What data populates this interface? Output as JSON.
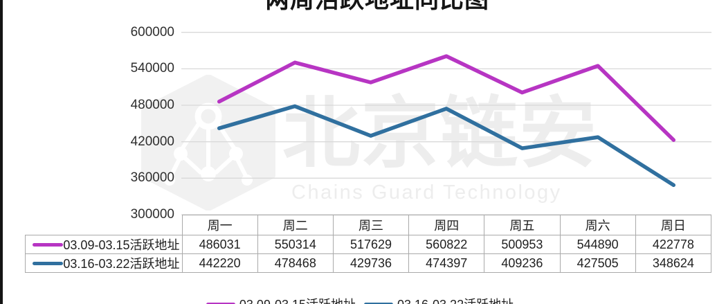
{
  "title": "两周活跃地址同比图",
  "watermark": {
    "logo_icon": "hexagon-molecule-icon",
    "brand": "北京链安",
    "brand_en": "Chains Guard Technology"
  },
  "colors": {
    "series1": "#b735c3",
    "series2": "#30709f",
    "gridline": "#d9d9d9",
    "table_border": "#a9a9a9",
    "watermark_gray": "#ededed"
  },
  "chart_data": {
    "type": "line",
    "title": "两周活跃地址同比图",
    "categories": [
      "周一",
      "周二",
      "周三",
      "周四",
      "周五",
      "周六",
      "周日"
    ],
    "series": [
      {
        "name": "03.09-03.15活跃地址",
        "color": "#b735c3",
        "values": [
          486031,
          550314,
          517629,
          560822,
          500953,
          544890,
          422778
        ]
      },
      {
        "name": "03.16-03.22活跃地址",
        "color": "#30709f",
        "values": [
          442220,
          478468,
          429736,
          474397,
          409236,
          427505,
          348624
        ]
      }
    ],
    "ylim": [
      300000,
      600000
    ],
    "yticks": [
      600000,
      540000,
      480000,
      420000,
      360000,
      300000
    ],
    "grid": true,
    "legend_position": "bottom",
    "show_data_table": true
  }
}
